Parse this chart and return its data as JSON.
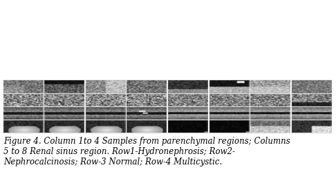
{
  "caption": "Figure 4. Column 1to 4 Samples from parenchymal regions; Columns\n5 to 8 Renal sinus region. Row1-Hydronephrosis; Row2-\nNephrocalcinosis; Row-3 Normal; Row-4 Multicystic.",
  "caption_fontsize": 8.5,
  "caption_style": "italic",
  "caption_color": "#000000",
  "nrows": 4,
  "ncols": 8,
  "bg_color": "#ffffff",
  "figure_width": 4.86,
  "figure_height": 2.75,
  "seed": 42,
  "patch_size": 32
}
